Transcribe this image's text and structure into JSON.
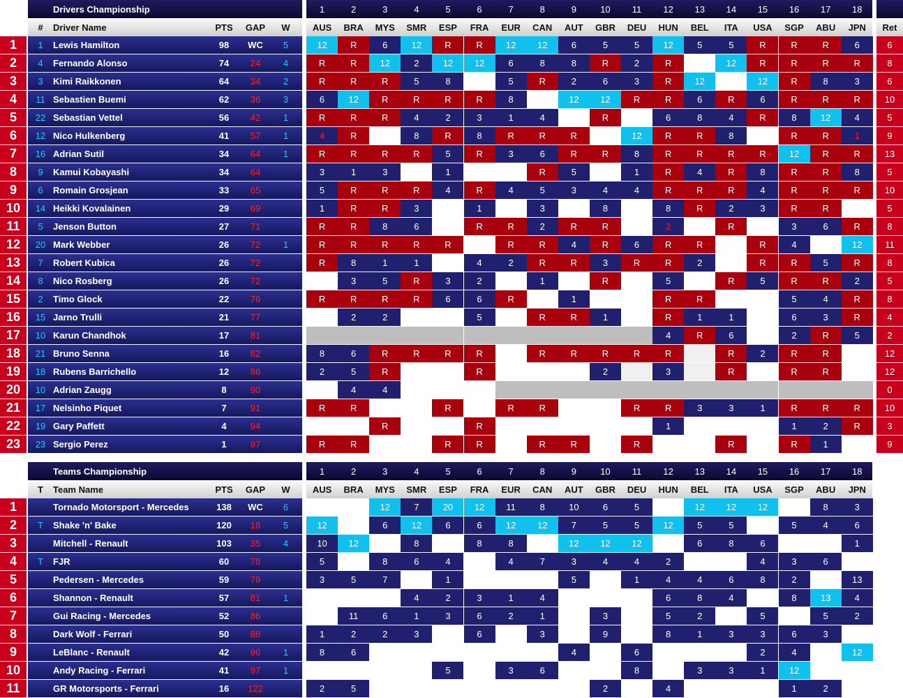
{
  "races": [
    "AUS",
    "BRA",
    "MYS",
    "SMR",
    "ESP",
    "FRA",
    "EUR",
    "CAN",
    "AUT",
    "GBR",
    "DEU",
    "HUN",
    "BEL",
    "ITA",
    "USA",
    "SGP",
    "ABU",
    "JPN"
  ],
  "race_numbers": [
    "1",
    "2",
    "3",
    "4",
    "5",
    "6",
    "7",
    "8",
    "9",
    "10",
    "11",
    "12",
    "13",
    "14",
    "15",
    "16",
    "17",
    "18"
  ],
  "drivers": {
    "title": "Drivers Championship",
    "headers": {
      "num": "#",
      "name": "Driver Name",
      "pts": "PTS",
      "gap": "GAP",
      "w": "W",
      "ret": "Ret"
    },
    "rows": [
      {
        "pos": "1",
        "num": "1",
        "name": "Lewis Hamilton",
        "pts": "98",
        "gap": "WC",
        "w": "5",
        "ret": "6",
        "res": [
          "12|c",
          "R|r",
          "6|b",
          "12|c",
          "R|r",
          "R|r",
          "12|c",
          "12|c",
          "6|b",
          "5|b",
          "5|b",
          "12|c",
          "5|b",
          "5|b",
          "R|r",
          "R|r",
          "R|r",
          "6|b"
        ]
      },
      {
        "pos": "2",
        "num": "4",
        "name": "Fernando Alonso",
        "pts": "74",
        "gap": "24",
        "w": "4",
        "ret": "8",
        "res": [
          "R|r",
          "R|r",
          "12|c",
          "2|b",
          "12|c",
          "12|c",
          "6|b",
          "8|b",
          "8|b",
          "R|r",
          "2|b",
          "R|r",
          "|w",
          "12|c",
          "R|r",
          "R|r",
          "R|r",
          "R|r"
        ]
      },
      {
        "pos": "3",
        "num": "3",
        "name": "Kimi Raikkonen",
        "pts": "64",
        "gap": "34",
        "w": "2",
        "ret": "6",
        "res": [
          "R|r",
          "R|r",
          "R|r",
          "5|b",
          "8|b",
          "|w",
          "5|b",
          "R|r",
          "2|b",
          "6|b",
          "3|b",
          "R|r",
          "12|c",
          "|w",
          "12|c",
          "R|r",
          "8|b",
          "3|b"
        ]
      },
      {
        "pos": "4",
        "num": "11",
        "name": "Sebastien Buemi",
        "pts": "62",
        "gap": "36",
        "w": "3",
        "ret": "10",
        "res": [
          "6|b",
          "12|c",
          "R|r",
          "R|r",
          "R|r",
          "R|r",
          "8|b",
          "|w",
          "12|c",
          "12|c",
          "R|r",
          "R|r",
          "6|b",
          "R|r",
          "6|b",
          "R|r",
          "R|r",
          "R|r"
        ]
      },
      {
        "pos": "5",
        "num": "22",
        "name": "Sebastian Vettel",
        "pts": "56",
        "gap": "42",
        "w": "1",
        "ret": "5",
        "res": [
          "R|r",
          "R|r",
          "R|r",
          "4|b",
          "2|b",
          "3|b",
          "1|b",
          "4|b",
          "|w",
          "R|r",
          "|w",
          "6|b",
          "8|b",
          "4|b",
          "R|r",
          "8|b",
          "12|c",
          "4|b"
        ]
      },
      {
        "pos": "6",
        "num": "12",
        "name": "Nico Hulkenberg",
        "pts": "41",
        "gap": "57",
        "w": "1",
        "ret": "9",
        "res": [
          "4|rr",
          "R|r",
          "|w",
          "8|b",
          "R|r",
          "8|b",
          "R|r",
          "R|r",
          "R|r",
          "|w",
          "12|c",
          "R|r",
          "R|r",
          "8|b",
          "|w",
          "R|r",
          "R|r",
          "1|rr"
        ]
      },
      {
        "pos": "7",
        "num": "16",
        "name": "Adrian Sutil",
        "pts": "34",
        "gap": "64",
        "w": "1",
        "ret": "13",
        "res": [
          "R|r",
          "R|r",
          "R|r",
          "R|r",
          "5|b",
          "R|r",
          "3|b",
          "6|b",
          "R|r",
          "R|r",
          "8|b",
          "R|r",
          "R|r",
          "R|r",
          "R|r",
          "12|c",
          "R|r",
          "R|r"
        ]
      },
      {
        "pos": "8",
        "num": "9",
        "name": "Kamui Kobayashi",
        "pts": "34",
        "gap": "64",
        "w": "",
        "ret": "5",
        "res": [
          "3|b",
          "1|b",
          "3|b",
          "|w",
          "1|b",
          "|w",
          "|w",
          "R|r",
          "5|b",
          "|w",
          "1|b",
          "R|r",
          "4|b",
          "R|r",
          "8|b",
          "R|r",
          "R|r",
          "8|b"
        ]
      },
      {
        "pos": "9",
        "num": "6",
        "name": "Romain Grosjean",
        "pts": "33",
        "gap": "65",
        "w": "",
        "ret": "10",
        "res": [
          "5|b",
          "R|r",
          "R|r",
          "R|r",
          "4|b",
          "R|r",
          "4|b",
          "5|b",
          "3|b",
          "4|b",
          "4|b",
          "R|r",
          "R|r",
          "R|r",
          "4|b",
          "R|r",
          "R|r",
          "R|r"
        ]
      },
      {
        "pos": "10",
        "num": "14",
        "name": "Heikki Kovalainen",
        "pts": "29",
        "gap": "69",
        "w": "",
        "ret": "5",
        "res": [
          "1|b",
          "R|r",
          "R|r",
          "3|b",
          "|w",
          "1|b",
          "|w",
          "3|b",
          "|w",
          "8|b",
          "|w",
          "8|b",
          "R|r",
          "2|b",
          "3|b",
          "R|r",
          "R|r",
          "|w"
        ]
      },
      {
        "pos": "11",
        "num": "5",
        "name": "Jenson Button",
        "pts": "27",
        "gap": "71",
        "w": "",
        "ret": "8",
        "res": [
          "R|r",
          "R|r",
          "8|b",
          "6|b",
          "|w",
          "R|r",
          "R|r",
          "2|b",
          "R|r",
          "R|r",
          "|w",
          "2|rr",
          "|w",
          "R|r",
          "|w",
          "3|b",
          "6|b",
          "R|r"
        ]
      },
      {
        "pos": "12",
        "num": "20",
        "name": "Mark Webber",
        "pts": "26",
        "gap": "72",
        "w": "1",
        "ret": "11",
        "res": [
          "R|r",
          "R|r",
          "R|r",
          "R|r",
          "R|r",
          "|w",
          "R|r",
          "R|r",
          "4|b",
          "R|r",
          "6|b",
          "R|r",
          "R|r",
          "|w",
          "R|r",
          "4|b",
          "|w",
          "12|c"
        ]
      },
      {
        "pos": "13",
        "num": "7",
        "name": "Robert Kubica",
        "pts": "26",
        "gap": "72",
        "w": "",
        "ret": "8",
        "res": [
          "R|r",
          "8|b",
          "1|b",
          "1|b",
          "|w",
          "4|b",
          "2|b",
          "R|r",
          "R|r",
          "3|b",
          "R|r",
          "R|r",
          "2|b",
          "|w",
          "R|r",
          "R|r",
          "5|b",
          "R|r"
        ]
      },
      {
        "pos": "14",
        "num": "8",
        "name": "Nico Rosberg",
        "pts": "26",
        "gap": "72",
        "w": "",
        "ret": "5",
        "res": [
          "|w",
          "3|b",
          "5|b",
          "R|r",
          "3|b",
          "2|b",
          "|w",
          "1|b",
          "|w",
          "R|r",
          "|w",
          "5|b",
          "|w",
          "R|r",
          "5|b",
          "R|r",
          "R|r",
          "2|b"
        ]
      },
      {
        "pos": "15",
        "num": "2",
        "name": "Timo Glock",
        "pts": "22",
        "gap": "76",
        "w": "",
        "ret": "8",
        "res": [
          "R|r",
          "R|r",
          "R|r",
          "R|r",
          "6|b",
          "6|b",
          "R|r",
          "|w",
          "1|b",
          "|w",
          "|w",
          "R|r",
          "R|r",
          "|w",
          "|w",
          "5|b",
          "4|b",
          "R|r"
        ]
      },
      {
        "pos": "16",
        "num": "15",
        "name": "Jarno Trulli",
        "pts": "21",
        "gap": "77",
        "w": "",
        "ret": "4",
        "res": [
          "|w",
          "2|b",
          "2|b",
          "|w",
          "|w",
          "5|b",
          "|w",
          "R|r",
          "R|r",
          "1|b",
          "|w",
          "R|r",
          "1|b",
          "1|b",
          "|w",
          "6|b",
          "3|b",
          "R|r"
        ]
      },
      {
        "pos": "17",
        "num": "10",
        "name": "Karun Chandhok",
        "pts": "17",
        "gap": "81",
        "w": "",
        "ret": "2",
        "res": [
          "|g",
          "|g",
          "|g",
          "|g",
          "|g",
          "|g",
          "|g",
          "|g",
          "|g",
          "|g",
          "|g",
          "4|b",
          "R|r",
          "6|b",
          "|w",
          "2|b",
          "R|r",
          "5|b"
        ]
      },
      {
        "pos": "18",
        "num": "21",
        "name": "Bruno Senna",
        "pts": "16",
        "gap": "82",
        "w": "",
        "ret": "12",
        "res": [
          "8|b",
          "6|b",
          "R|r",
          "R|r",
          "R|r",
          "R|r",
          "|w",
          "R|r",
          "R|r",
          "R|r",
          "R|r",
          "R|r",
          "|l",
          "R|r",
          "2|b",
          "R|r",
          "R|r",
          "|w"
        ]
      },
      {
        "pos": "19",
        "num": "18",
        "name": "Rubens Barrichello",
        "pts": "12",
        "gap": "86",
        "w": "",
        "ret": "12",
        "res": [
          "2|b",
          "5|b",
          "R|r",
          "|w",
          "|w",
          "R|r",
          "|w",
          "|w",
          "|w",
          "2|b",
          "|l",
          "3|b",
          "|l",
          "R|r",
          "|w",
          "R|r",
          "R|r",
          "|w"
        ]
      },
      {
        "pos": "20",
        "num": "10",
        "name": "Adrian Zaugg",
        "pts": "8",
        "gap": "90",
        "w": "",
        "ret": "0",
        "res": [
          "|w",
          "4|b",
          "4|b",
          "|w",
          "|w",
          "|w",
          "|g",
          "|g",
          "|g",
          "|g",
          "|g",
          "|g",
          "|g",
          "|g",
          "|g",
          "|g",
          "|g",
          "|g"
        ]
      },
      {
        "pos": "21",
        "num": "17",
        "name": "Nelsinho Piquet",
        "pts": "7",
        "gap": "91",
        "w": "",
        "ret": "10",
        "res": [
          "R|r",
          "R|r",
          "|w",
          "|w",
          "R|r",
          "|w",
          "R|r",
          "R|r",
          "|w",
          "|w",
          "R|r",
          "R|r",
          "3|b",
          "3|b",
          "1|b",
          "R|r",
          "R|r",
          "R|r"
        ]
      },
      {
        "pos": "22",
        "num": "19",
        "name": "Gary Paffett",
        "pts": "4",
        "gap": "94",
        "w": "",
        "ret": "3",
        "res": [
          "|w",
          "|w",
          "R|r",
          "|w",
          "|w",
          "R|r",
          "|w",
          "|w",
          "|w",
          "|w",
          "|w",
          "1|b",
          "|w",
          "|w",
          "|w",
          "1|b",
          "2|b",
          "R|r"
        ]
      },
      {
        "pos": "23",
        "num": "23",
        "name": "Sergio Perez",
        "pts": "1",
        "gap": "97",
        "w": "",
        "ret": "9",
        "res": [
          "R|r",
          "R|r",
          "|w",
          "|w",
          "R|r",
          "R|r",
          "|w",
          "R|r",
          "R|r",
          "|w",
          "R|r",
          "|w",
          "|w",
          "R|r",
          "|w",
          "R|r",
          "1|b",
          "|w"
        ]
      }
    ]
  },
  "teams": {
    "title": "Teams Championship",
    "headers": {
      "num": "T",
      "name": "Team Name",
      "pts": "PTS",
      "gap": "GAP",
      "w": "W"
    },
    "rows": [
      {
        "pos": "1",
        "num": "",
        "name": "Tornado Motorsport - Mercedes",
        "pts": "138",
        "gap": "WC",
        "w": "6",
        "res": [
          "|w",
          "|w",
          "12|c",
          "7|b",
          "20|c",
          "12|c",
          "11|b",
          "8|b",
          "10|b",
          "6|b",
          "5|b",
          "|w",
          "12|c",
          "12|c",
          "12|c",
          "|w",
          "8|b",
          "3|b"
        ]
      },
      {
        "pos": "2",
        "num": "T",
        "name": "Shake 'n' Bake",
        "pts": "120",
        "gap": "18",
        "w": "5",
        "res": [
          "12|c",
          "|w",
          "6|b",
          "12|c",
          "6|b",
          "6|b",
          "12|c",
          "12|c",
          "7|b",
          "5|b",
          "5|b",
          "12|c",
          "5|b",
          "5|b",
          "|w",
          "5|b",
          "4|b",
          "6|b"
        ]
      },
      {
        "pos": "3",
        "num": "",
        "name": "Mitchell - Renault",
        "pts": "103",
        "gap": "35",
        "w": "4",
        "res": [
          "10|b",
          "12|c",
          "|w",
          "8|b",
          "|w",
          "8|b",
          "8|b",
          "|w",
          "12|c",
          "12|c",
          "12|c",
          "|w",
          "6|b",
          "8|b",
          "6|b",
          "|w",
          "|w",
          "1|b"
        ]
      },
      {
        "pos": "4",
        "num": "T",
        "name": "FJR",
        "pts": "60",
        "gap": "78",
        "w": "",
        "res": [
          "5|b",
          "|w",
          "8|b",
          "6|b",
          "4|b",
          "|w",
          "4|b",
          "7|b",
          "3|b",
          "4|b",
          "4|b",
          "2|b",
          "|w",
          "|w",
          "4|b",
          "3|b",
          "6|b",
          "|w"
        ]
      },
      {
        "pos": "5",
        "num": "",
        "name": "Pedersen - Mercedes",
        "pts": "59",
        "gap": "79",
        "w": "",
        "res": [
          "3|b",
          "5|b",
          "7|b",
          "|w",
          "1|b",
          "|w",
          "|w",
          "|w",
          "5|b",
          "|w",
          "1|b",
          "4|b",
          "4|b",
          "6|b",
          "8|b",
          "2|b",
          "|w",
          "13|b"
        ]
      },
      {
        "pos": "6",
        "num": "",
        "name": "Shannon - Renault",
        "pts": "57",
        "gap": "81",
        "w": "1",
        "res": [
          "|w",
          "|w",
          "|w",
          "4|b",
          "2|b",
          "3|b",
          "1|b",
          "4|b",
          "|w",
          "|w",
          "|w",
          "6|b",
          "8|b",
          "4|b",
          "|w",
          "8|b",
          "13|c",
          "4|b"
        ]
      },
      {
        "pos": "7",
        "num": "",
        "name": "Gui Racing - Mercedes",
        "pts": "52",
        "gap": "86",
        "w": "",
        "res": [
          "|w",
          "11|b",
          "6|b",
          "1|b",
          "3|b",
          "6|b",
          "2|b",
          "1|b",
          "|w",
          "3|b",
          "|w",
          "5|b",
          "2|b",
          "|w",
          "5|b",
          "|w",
          "5|b",
          "2|b"
        ]
      },
      {
        "pos": "8",
        "num": "",
        "name": "Dark Wolf - Ferrari",
        "pts": "50",
        "gap": "88",
        "w": "",
        "res": [
          "1|b",
          "2|b",
          "2|b",
          "3|b",
          "|w",
          "6|b",
          "|w",
          "3|b",
          "|w",
          "9|b",
          "|w",
          "8|b",
          "1|b",
          "3|b",
          "3|b",
          "6|b",
          "3|b",
          "|w"
        ]
      },
      {
        "pos": "9",
        "num": "",
        "name": "LeBlanc - Renault",
        "pts": "42",
        "gap": "96",
        "w": "1",
        "res": [
          "8|b",
          "6|b",
          "|w",
          "|w",
          "|w",
          "|w",
          "|w",
          "|w",
          "4|b",
          "|w",
          "6|b",
          "|w",
          "|w",
          "|w",
          "2|b",
          "4|b",
          "|w",
          "12|c"
        ]
      },
      {
        "pos": "10",
        "num": "",
        "name": "Andy Racing - Ferrari",
        "pts": "41",
        "gap": "97",
        "w": "1",
        "res": [
          "|w",
          "|w",
          "|w",
          "|w",
          "5|b",
          "|w",
          "3|b",
          "6|b",
          "|w",
          "|w",
          "8|b",
          "|w",
          "3|b",
          "3|b",
          "1|b",
          "12|c",
          "|w",
          "|w"
        ]
      },
      {
        "pos": "11",
        "num": "",
        "name": "GR Motorsports - Ferrari",
        "pts": "16",
        "gap": "122",
        "w": "",
        "res": [
          "2|b",
          "5|b",
          "|w",
          "|w",
          "|w",
          "|w",
          "|w",
          "|w",
          "|w",
          "2|b",
          "|w",
          "4|b",
          "|w",
          "|w",
          "|w",
          "1|b",
          "2|b",
          "|w"
        ]
      }
    ]
  }
}
